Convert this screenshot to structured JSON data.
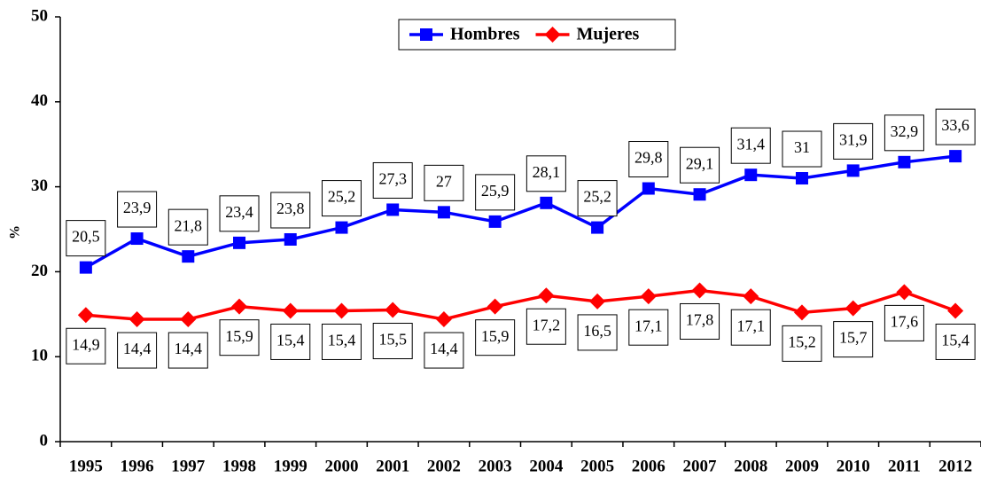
{
  "chart_data": {
    "type": "line",
    "y_label": "%",
    "categories": [
      "1995",
      "1996",
      "1997",
      "1998",
      "1999",
      "2000",
      "2001",
      "2002",
      "2003",
      "2004",
      "2005",
      "2006",
      "2007",
      "2008",
      "2009",
      "2010",
      "2011",
      "2012"
    ],
    "series": [
      {
        "name": "Hombres",
        "color": "#0000ff",
        "marker": "square",
        "values": [
          20.5,
          23.9,
          21.8,
          23.4,
          23.8,
          25.2,
          27.3,
          27,
          25.9,
          28.1,
          25.2,
          29.8,
          29.1,
          31.4,
          31,
          31.9,
          32.9,
          33.6
        ],
        "value_labels": [
          "20,5",
          "23,9",
          "21,8",
          "23,4",
          "23,8",
          "25,2",
          "27,3",
          "27",
          "25,9",
          "28,1",
          "25,2",
          "29,8",
          "29,1",
          "31,4",
          "31",
          "31,9",
          "32,9",
          "33,6"
        ]
      },
      {
        "name": "Mujeres",
        "color": "#ff0000",
        "marker": "diamond",
        "values": [
          14.9,
          14.4,
          14.4,
          15.9,
          15.4,
          15.4,
          15.5,
          14.4,
          15.9,
          17.2,
          16.5,
          17.1,
          17.8,
          17.1,
          15.2,
          15.7,
          17.6,
          15.4
        ],
        "value_labels": [
          "14,9",
          "14,4",
          "14,4",
          "15,9",
          "15,4",
          "15,4",
          "15,5",
          "14,4",
          "15,9",
          "17,2",
          "16,5",
          "17,1",
          "17,8",
          "17,1",
          "15,2",
          "15,7",
          "17,6",
          "15,4"
        ]
      }
    ],
    "ylim": [
      0,
      50
    ],
    "yticks": [
      0,
      10,
      20,
      30,
      40,
      50
    ],
    "legend": "top"
  }
}
